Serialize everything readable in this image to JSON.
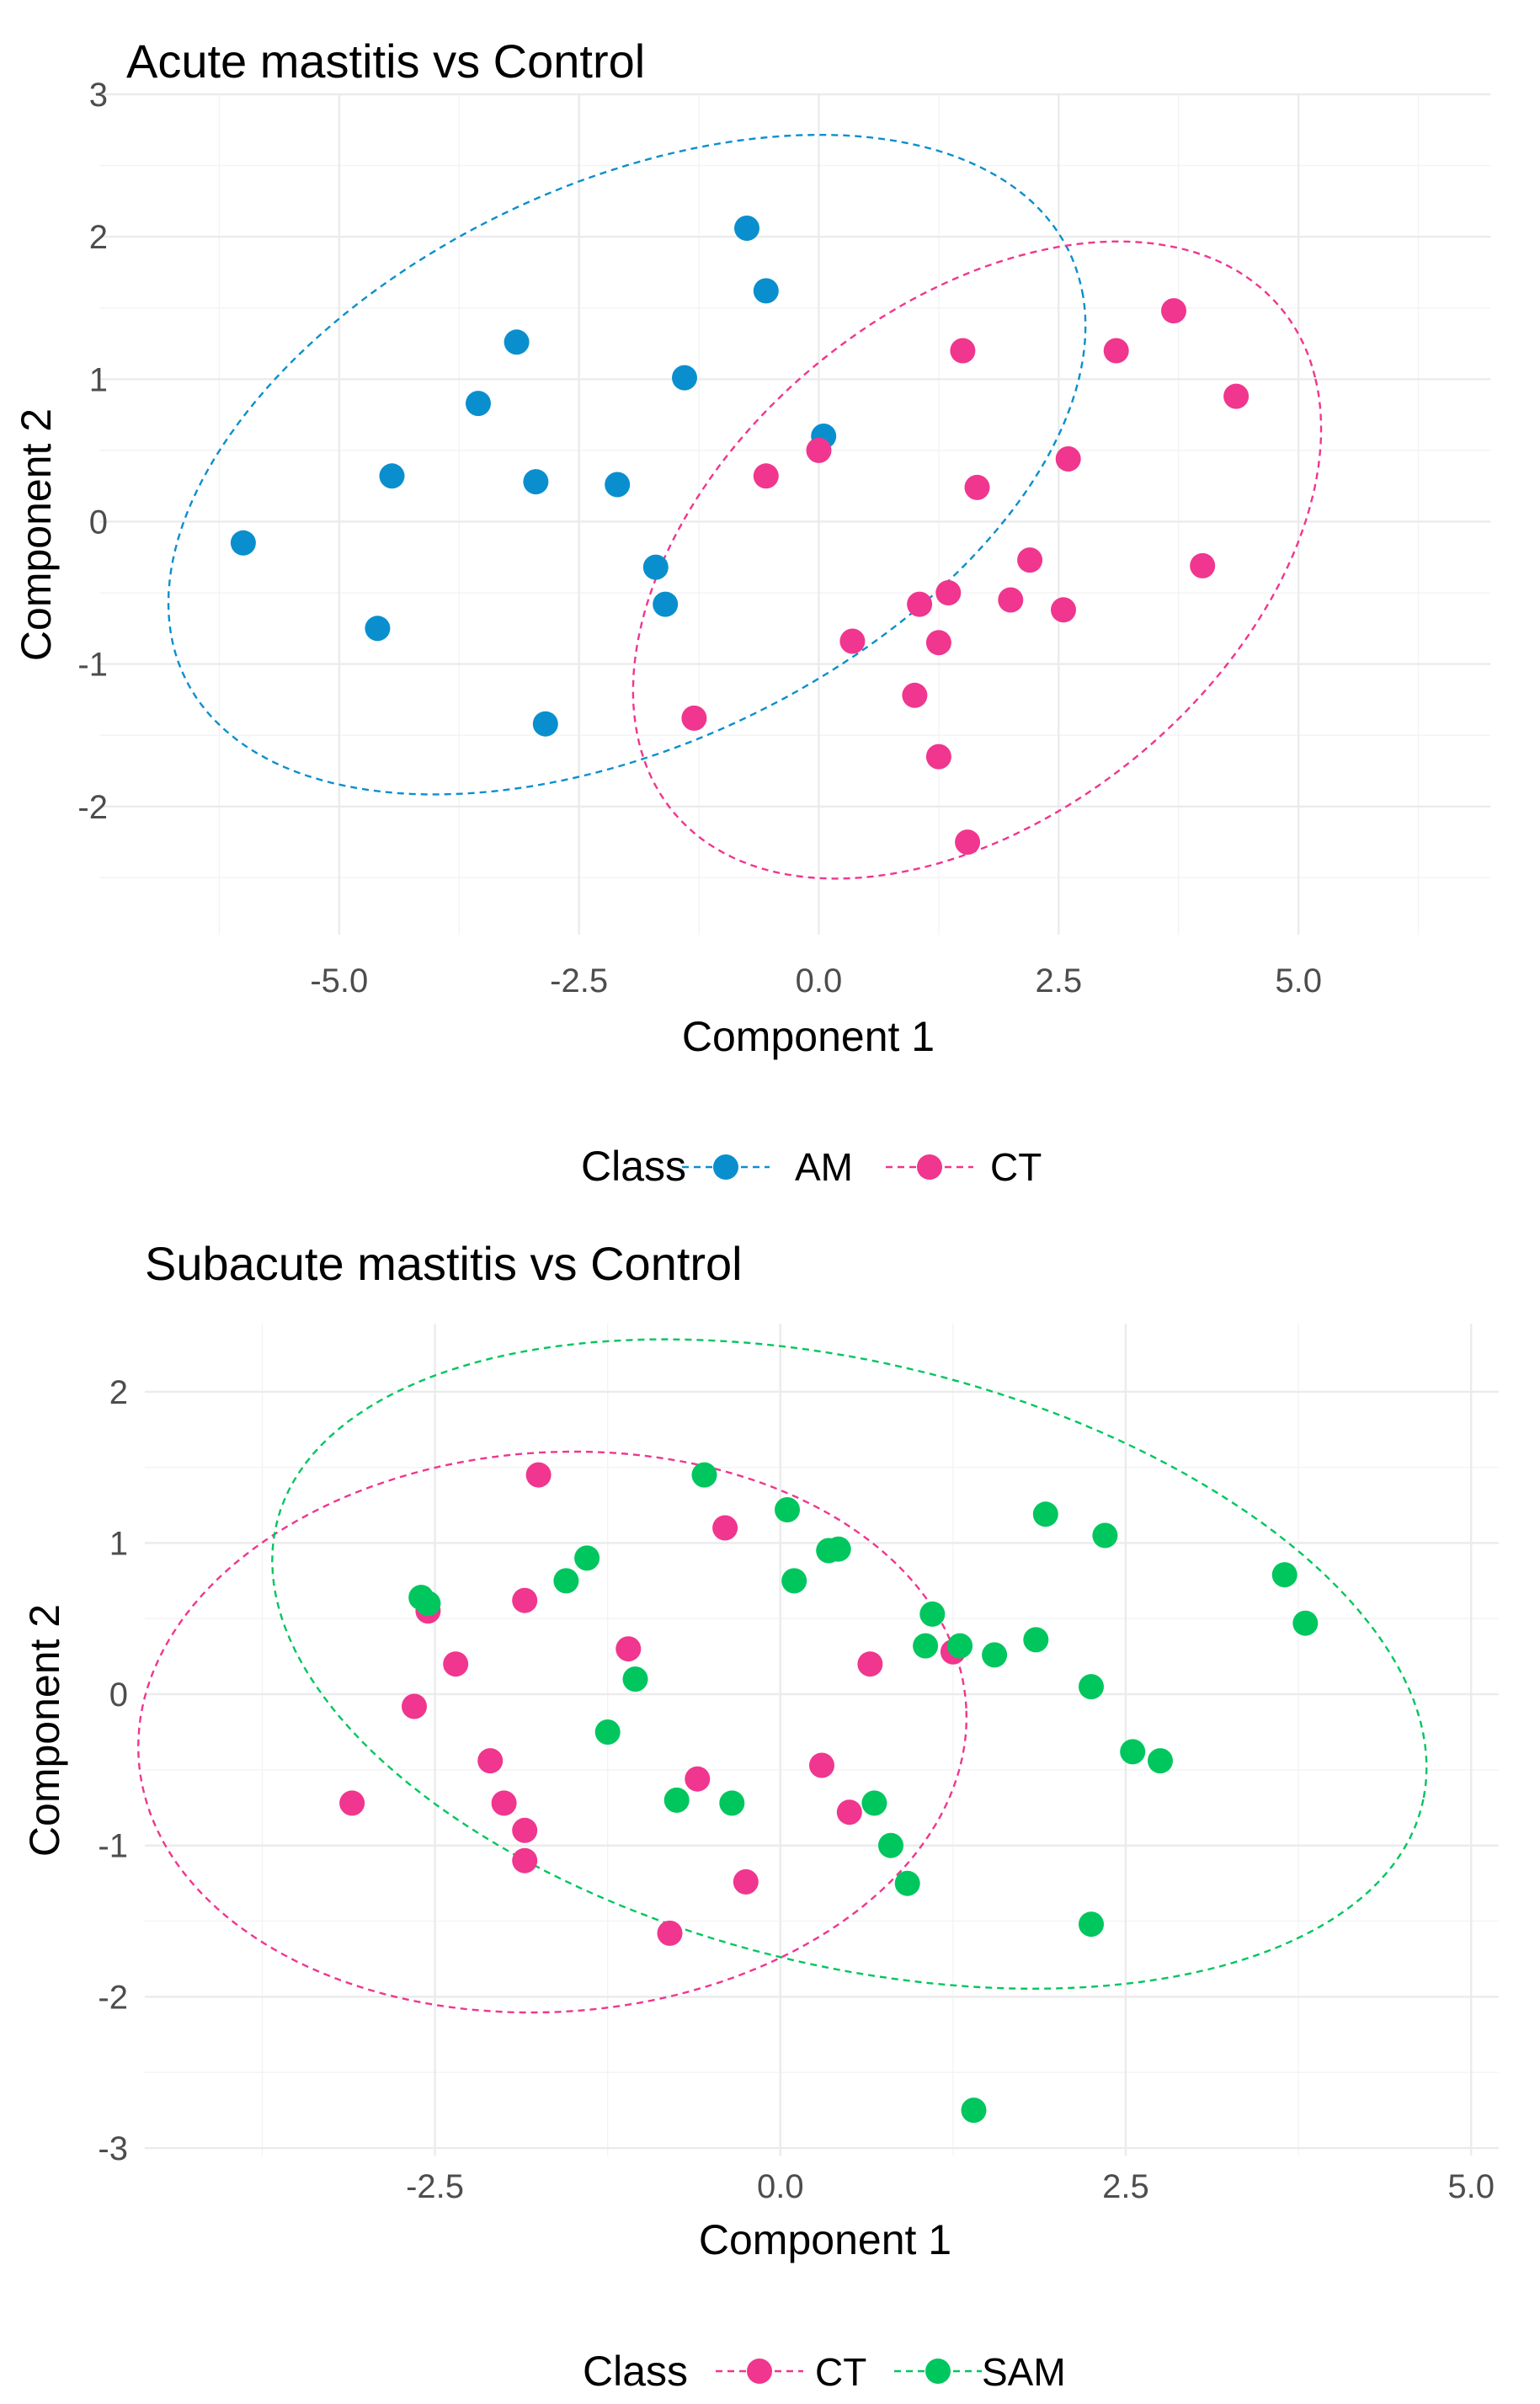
{
  "chart_data": [
    {
      "type": "scatter",
      "title": "Acute mastitis vs Control",
      "xlabel": "Component 1",
      "ylabel": "Component 2",
      "xlim": [
        -7.5,
        7.0
      ],
      "ylim": [
        -2.9,
        3.0
      ],
      "xticks": [
        -5.0,
        -2.5,
        0.0,
        2.5,
        5.0
      ],
      "xtick_labels": [
        "-5.0",
        "-2.5",
        "0.0",
        "2.5",
        "5.0"
      ],
      "yticks": [
        -2,
        -1,
        0,
        1,
        2,
        3
      ],
      "ytick_labels": [
        "-2",
        "-1",
        "0",
        "1",
        "2",
        "3"
      ],
      "legend": {
        "title": "Class",
        "position": "bottom",
        "entries": [
          "AM",
          "CT"
        ]
      },
      "series": [
        {
          "name": "AM",
          "color": "#0a8fce",
          "ellipse": {
            "center": [
              -2.0,
              0.4
            ],
            "rx": 4.9,
            "ry": 2.05,
            "angle_deg": 14
          },
          "points": [
            [
              -6.0,
              -0.15
            ],
            [
              -4.6,
              -0.75
            ],
            [
              -4.45,
              0.32
            ],
            [
              -3.55,
              0.83
            ],
            [
              -3.15,
              1.26
            ],
            [
              -2.95,
              0.28
            ],
            [
              -2.85,
              -1.42
            ],
            [
              -2.1,
              0.26
            ],
            [
              -1.7,
              -0.32
            ],
            [
              -1.6,
              -0.58
            ],
            [
              -1.4,
              1.01
            ],
            [
              -0.75,
              2.06
            ],
            [
              -0.55,
              1.62
            ],
            [
              0.05,
              0.6
            ]
          ]
        },
        {
          "name": "CT",
          "color": "#f0368e",
          "ellipse": {
            "center": [
              1.65,
              -0.27
            ],
            "rx": 3.75,
            "ry": 1.95,
            "angle_deg": 20
          },
          "points": [
            [
              -1.3,
              -1.38
            ],
            [
              -0.55,
              0.32
            ],
            [
              0.0,
              0.5
            ],
            [
              0.35,
              -0.84
            ],
            [
              1.0,
              -1.22
            ],
            [
              1.05,
              -0.58
            ],
            [
              1.25,
              -0.85
            ],
            [
              1.25,
              -1.65
            ],
            [
              1.35,
              -0.5
            ],
            [
              1.5,
              1.2
            ],
            [
              1.55,
              -2.25
            ],
            [
              1.65,
              0.24
            ],
            [
              2.0,
              -0.55
            ],
            [
              2.2,
              -0.27
            ],
            [
              2.55,
              -0.62
            ],
            [
              2.6,
              0.44
            ],
            [
              3.1,
              1.2
            ],
            [
              3.7,
              1.48
            ],
            [
              4.0,
              -0.31
            ],
            [
              4.35,
              0.88
            ]
          ]
        }
      ]
    },
    {
      "type": "scatter",
      "title": "Subacute mastitis vs Control",
      "xlabel": "Component 1",
      "ylabel": "Component 2",
      "xlim": [
        -4.6,
        5.2
      ],
      "ylim": [
        -3.05,
        2.45
      ],
      "xticks": [
        -2.5,
        0.0,
        2.5,
        5.0
      ],
      "xtick_labels": [
        "-2.5",
        "0.0",
        "2.5",
        "5.0"
      ],
      "yticks": [
        -3,
        -2,
        -1,
        0,
        1,
        2
      ],
      "ytick_labels": [
        "-3",
        "-2",
        "-1",
        "0",
        "1",
        "2"
      ],
      "legend": {
        "title": "Class",
        "position": "bottom",
        "entries": [
          "CT",
          "SAM"
        ]
      },
      "series": [
        {
          "name": "CT",
          "color": "#f0368e",
          "ellipse": {
            "center": [
              -1.65,
              -0.25
            ],
            "rx": 3.0,
            "ry": 1.85,
            "angle_deg": 3
          },
          "points": [
            [
              -3.1,
              -0.72
            ],
            [
              -2.65,
              -0.08
            ],
            [
              -2.55,
              0.55
            ],
            [
              -2.35,
              0.2
            ],
            [
              -2.1,
              -0.44
            ],
            [
              -2.0,
              -0.72
            ],
            [
              -1.85,
              -0.9
            ],
            [
              -1.85,
              0.62
            ],
            [
              -1.85,
              -1.1
            ],
            [
              -1.75,
              1.45
            ],
            [
              -1.1,
              0.3
            ],
            [
              -0.8,
              -1.58
            ],
            [
              -0.6,
              -0.56
            ],
            [
              -0.4,
              1.1
            ],
            [
              -0.25,
              -1.24
            ],
            [
              0.3,
              -0.47
            ],
            [
              0.5,
              -0.78
            ],
            [
              0.65,
              0.2
            ],
            [
              1.25,
              0.28
            ]
          ]
        },
        {
          "name": "SAM",
          "color": "#00c65e",
          "ellipse": {
            "center": [
              0.5,
              0.2
            ],
            "rx": 4.25,
            "ry": 2.0,
            "angle_deg": -12
          },
          "points": [
            [
              -2.6,
              0.64
            ],
            [
              -2.55,
              0.6
            ],
            [
              -1.55,
              0.75
            ],
            [
              -1.4,
              0.9
            ],
            [
              -1.25,
              -0.25
            ],
            [
              -1.05,
              0.1
            ],
            [
              -0.75,
              -0.7
            ],
            [
              -0.55,
              1.45
            ],
            [
              -0.35,
              -0.72
            ],
            [
              0.05,
              1.22
            ],
            [
              0.1,
              0.75
            ],
            [
              0.35,
              0.95
            ],
            [
              0.42,
              0.96
            ],
            [
              0.68,
              -0.72
            ],
            [
              0.8,
              -1.0
            ],
            [
              0.92,
              -1.25
            ],
            [
              1.05,
              0.32
            ],
            [
              1.1,
              0.53
            ],
            [
              1.3,
              0.32
            ],
            [
              1.4,
              -2.75
            ],
            [
              1.55,
              0.26
            ],
            [
              1.85,
              0.36
            ],
            [
              1.92,
              1.19
            ],
            [
              2.25,
              0.05
            ],
            [
              2.25,
              -1.52
            ],
            [
              2.35,
              1.05
            ],
            [
              2.55,
              -0.38
            ],
            [
              2.75,
              -0.44
            ],
            [
              3.65,
              0.79
            ],
            [
              3.8,
              0.47
            ]
          ]
        }
      ]
    }
  ]
}
